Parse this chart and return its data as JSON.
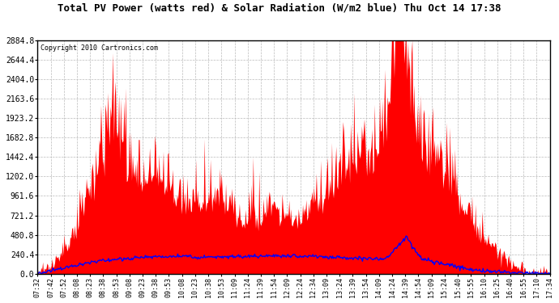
{
  "title": "Total PV Power (watts red) & Solar Radiation (W/m2 blue) Thu Oct 14 17:38",
  "copyright": "Copyright 2010 Cartronics.com",
  "ymax": 2884.8,
  "ytick_step": 240.4,
  "background_color": "#ffffff",
  "plot_bg_color": "#ffffff",
  "grid_color": "#bbbbbb",
  "red_color": "#ff0000",
  "blue_color": "#0000ff",
  "x_labels": [
    "07:32",
    "07:42",
    "07:52",
    "08:08",
    "08:23",
    "08:38",
    "08:53",
    "09:08",
    "09:23",
    "09:38",
    "09:53",
    "10:08",
    "10:23",
    "10:38",
    "10:53",
    "11:09",
    "11:24",
    "11:39",
    "11:54",
    "12:09",
    "12:24",
    "12:34",
    "13:09",
    "13:24",
    "13:39",
    "13:54",
    "14:09",
    "14:24",
    "14:39",
    "14:54",
    "15:09",
    "15:24",
    "15:40",
    "15:55",
    "16:10",
    "16:25",
    "16:40",
    "16:55",
    "17:10",
    "17:34"
  ],
  "figsize": [
    6.9,
    3.75
  ],
  "dpi": 100
}
